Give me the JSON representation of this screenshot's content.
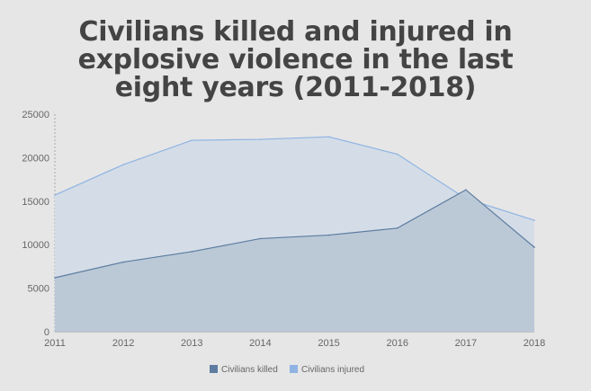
{
  "chart_data": {
    "type": "area",
    "title_lines": [
      "Civilians killed and injured in",
      "explosive violence in the last",
      "eight years (2011-2018)"
    ],
    "x": [
      "2011",
      "2012",
      "2013",
      "2014",
      "2015",
      "2016",
      "2017",
      "2018"
    ],
    "ylim": [
      0,
      25000
    ],
    "yticks": [
      0,
      5000,
      10000,
      15000,
      20000,
      25000
    ],
    "series": [
      {
        "name": "Civilians injured",
        "values": [
          15700,
          19200,
          22000,
          22100,
          22400,
          20400,
          15300,
          12800
        ],
        "color": "#8fb3e3",
        "fill": "#d3dce7"
      },
      {
        "name": "Civilians killed",
        "values": [
          6200,
          8000,
          9200,
          10700,
          11100,
          11900,
          16300,
          9700
        ],
        "color": "#5d7ca0",
        "fill": "#b9c7d6"
      }
    ],
    "legend_position": "bottom",
    "grid": false
  }
}
